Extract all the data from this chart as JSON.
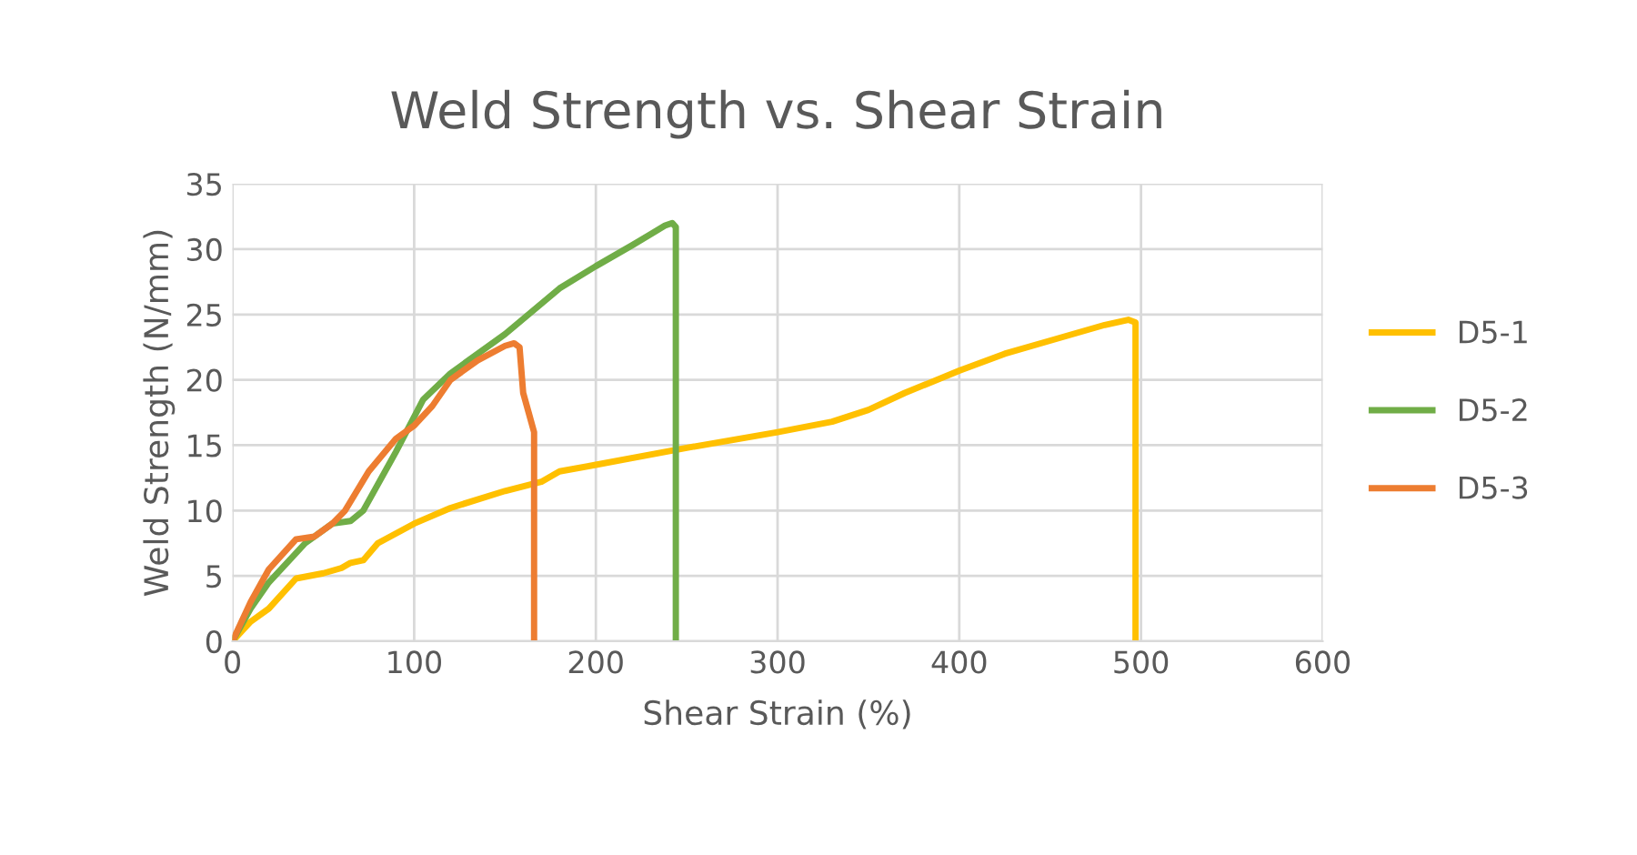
{
  "chart_data": {
    "type": "line",
    "title": "Weld Strength vs. Shear Strain",
    "xlabel": "Shear Strain (%)",
    "ylabel": "Weld Strength (N/mm)",
    "xlim": [
      0,
      600
    ],
    "xticks": [
      0,
      100,
      200,
      300,
      400,
      500,
      600
    ],
    "ylim": [
      0,
      35
    ],
    "yticks": [
      0,
      5,
      10,
      15,
      20,
      25,
      30,
      35
    ],
    "grid": true,
    "legend": "right",
    "marker": "none",
    "line_style": "solid",
    "series": [
      {
        "name": "D5-1",
        "color": "#ffc000",
        "x": [
          0,
          10,
          20,
          35,
          50,
          60,
          65,
          72,
          80,
          100,
          120,
          150,
          170,
          180,
          200,
          250,
          300,
          330,
          350,
          370,
          400,
          425,
          450,
          480,
          493,
          497,
          497
        ],
        "values": [
          0,
          1.5,
          2.5,
          4.8,
          5.2,
          5.6,
          6,
          6.2,
          7.5,
          9,
          10.2,
          11.5,
          12.2,
          13,
          13.5,
          14.8,
          16,
          16.8,
          17.7,
          19,
          20.7,
          22,
          23,
          24.2,
          24.6,
          24.4,
          0
        ]
      },
      {
        "name": "D5-2",
        "color": "#70ad47",
        "x": [
          0,
          10,
          20,
          40,
          55,
          65,
          72,
          90,
          105,
          120,
          150,
          180,
          200,
          220,
          238,
          242,
          244,
          244
        ],
        "values": [
          0,
          2.5,
          4.5,
          7.5,
          9,
          9.2,
          10,
          14.5,
          18.5,
          20.5,
          23.5,
          27,
          28.7,
          30.3,
          31.8,
          32,
          31.7,
          0
        ]
      },
      {
        "name": "D5-3",
        "color": "#ed7d31",
        "x": [
          0,
          10,
          20,
          35,
          45,
          55,
          62,
          75,
          90,
          100,
          110,
          120,
          135,
          150,
          155,
          158,
          160,
          163,
          166,
          166
        ],
        "values": [
          0,
          3,
          5.5,
          7.8,
          8,
          9,
          10,
          13,
          15.5,
          16.5,
          18,
          20,
          21.5,
          22.6,
          22.8,
          22.5,
          19,
          17.5,
          16,
          0
        ]
      }
    ]
  }
}
